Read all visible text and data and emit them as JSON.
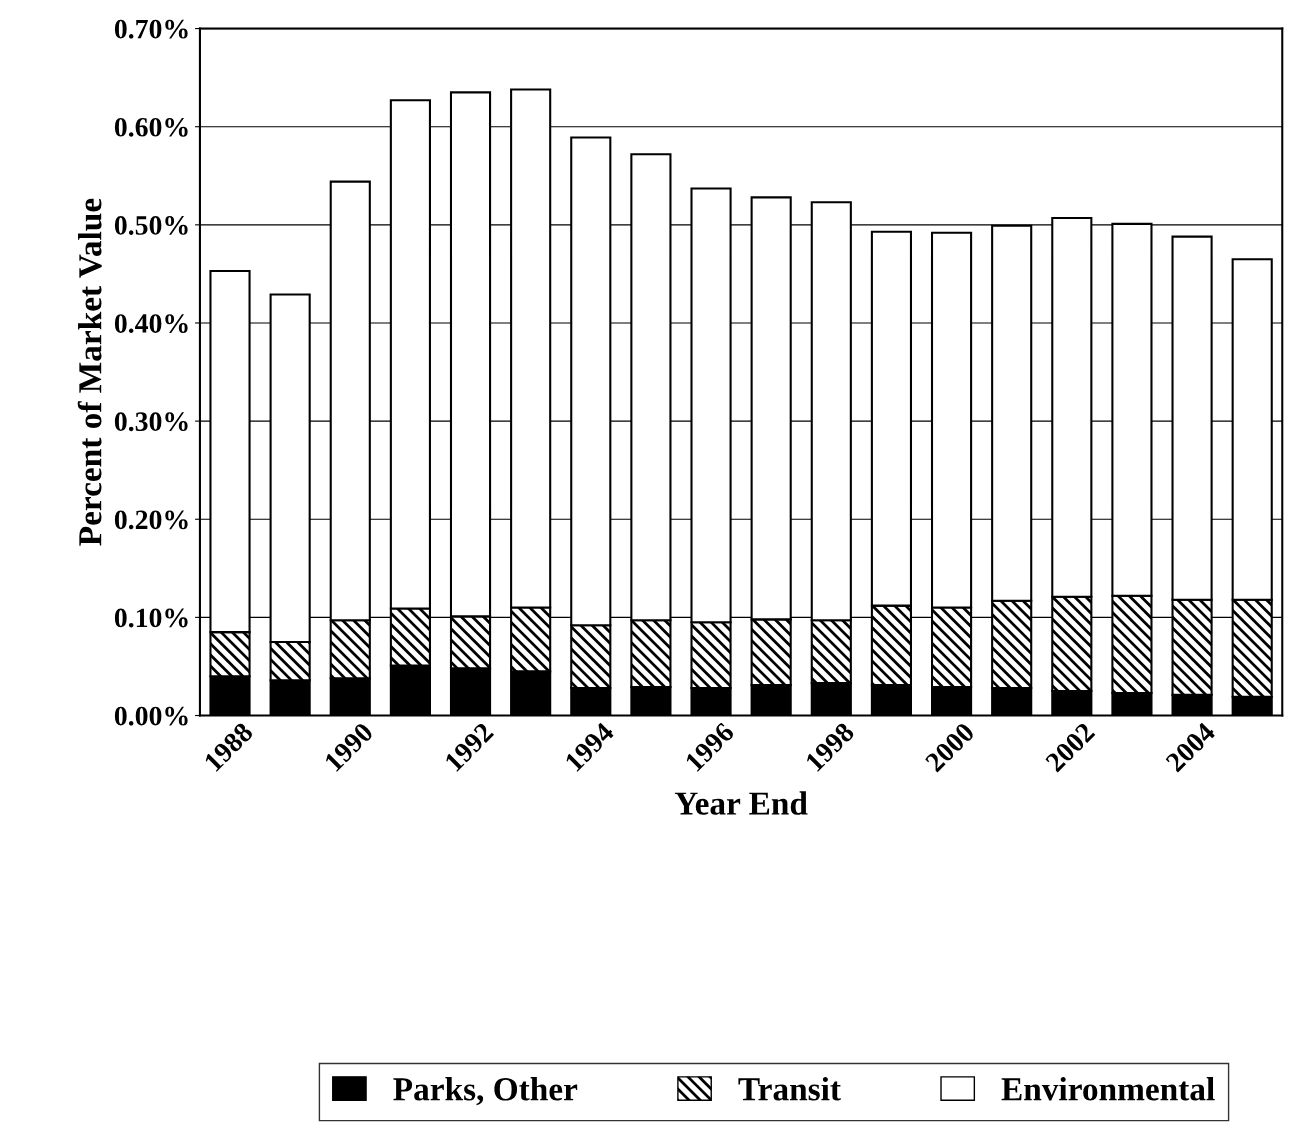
{
  "chart_data": {
    "type": "bar",
    "stacked": true,
    "xlabel": "Year End",
    "ylabel": "Percent of Market Value",
    "categories": [
      "1988",
      null,
      "1990",
      null,
      "1992",
      null,
      "1994",
      null,
      "1996",
      null,
      "1998",
      null,
      "2000",
      null,
      "2002",
      null,
      "2004",
      null
    ],
    "series": [
      {
        "name": "Parks, Other",
        "color": "#000000",
        "values": [
          0.04,
          0.036,
          0.038,
          0.051,
          0.048,
          0.045,
          0.028,
          0.029,
          0.028,
          0.031,
          0.033,
          0.031,
          0.029,
          0.028,
          0.025,
          0.023,
          0.021,
          0.019
        ]
      },
      {
        "name": "Transit",
        "color": "#000000",
        "values": [
          0.045,
          0.039,
          0.059,
          0.058,
          0.053,
          0.065,
          0.064,
          0.068,
          0.067,
          0.067,
          0.064,
          0.081,
          0.081,
          0.089,
          0.096,
          0.099,
          0.097,
          0.099
        ]
      },
      {
        "name": "Environmental",
        "color": "#ffffff",
        "values": [
          0.368,
          0.354,
          0.447,
          0.518,
          0.534,
          0.528,
          0.497,
          0.475,
          0.442,
          0.43,
          0.426,
          0.381,
          0.382,
          0.382,
          0.386,
          0.379,
          0.37,
          0.347
        ]
      }
    ],
    "ylim": [
      0,
      0.7
    ],
    "yticks": [
      {
        "value": 0,
        "label": "0.00%"
      },
      {
        "value": 0.1,
        "label": "0.10%"
      },
      {
        "value": 0.2,
        "label": "0.20%"
      },
      {
        "value": 0.3,
        "label": "0.30%"
      },
      {
        "value": 0.4,
        "label": "0.40%"
      },
      {
        "value": 0.5,
        "label": "0.50%"
      },
      {
        "value": 0.6,
        "label": "0.60%"
      },
      {
        "value": 0.7,
        "label": "0.70%"
      }
    ],
    "grid": "y",
    "legend": "bottom"
  }
}
